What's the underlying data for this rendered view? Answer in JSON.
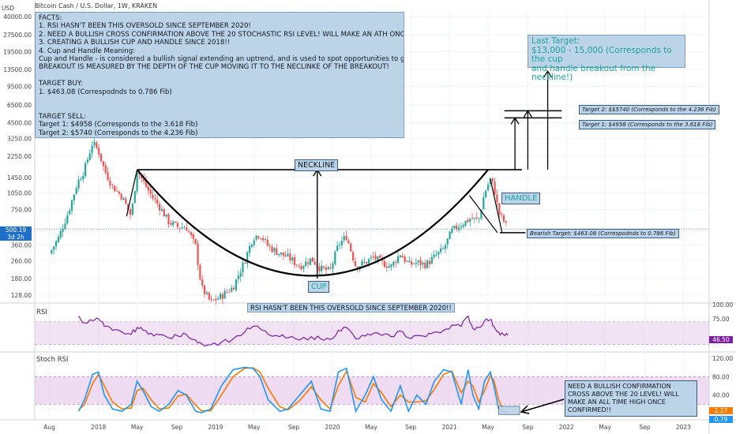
{
  "symbol": "Bitcoin Cash / U.S. Dollar, 1W, KRAKEN",
  "currency": "USD",
  "facts_lines": [
    "FACTS:",
    "1. RSI HASN'T BEEN THIS OVERSOLD SINCE SEPTEMBER 2020!",
    "2. NEED A BULLISH CROSS CONFIRMATION ABOVE THE 20 STOCHASTIC RSI LEVEL! WILL MAKE AN ATH ONCE CONFIRMED!",
    "3. CREATING A BULLISH CUP AND HANDLE SINCE 2018!!",
    "4. Cup and Handle Meaning:",
    "Cup and Handle - is considered a bullish signal extending an uptrend, and is used to spot opportunities to go long.",
    "BREAKOUT IS MEASURED BY THE DEPTH OF THE CUP MOVING IT TO THE NECLINKE OF THE BREAKOUT!",
    "",
    "TARGET BUY:",
    "1. $463.08 (Correspodnds to 0.786 Fib)",
    "",
    "",
    "TARGET SELL:",
    "Target 1: $4958 (Corresponds to the 3.618 Fib)",
    "Target 2: $5740 (Corresponds to the 4.236 Fib)",
    "Target 3: $13,000 - 15,000 (Corresponds to the cup and handle breakout from the neckline!)"
  ],
  "last_target_lines": [
    "Last Target:",
    "$13,000 - 15,000 (Corresponds to the cup",
    "and handle breakout from the neckline!)"
  ],
  "labels": {
    "target2": "Target 2: $$5740 (Corresponds to the 4.236 Fib)",
    "target1": "Target 1: $4958 (Corresponds to the 3.618 Fib)",
    "bearish": "Bearish Target: $463.08 (Correspodnds to 0.786 Fib)",
    "neckline": "NECKLINE",
    "cup": "CUP",
    "handle": "HANDLE",
    "rsi_note": "RSI HASN'T BEEN THIS OVERSOLD SINCE SEPTEMBER 2020!!",
    "stoch_note": "NEED A BULLISH CONFIRMATION CROSS ABOVE THE 20 LEVEL! WILL MAKE AN ALL TIME HIGH ONCE CONFIRMED!!"
  },
  "colors": {
    "up": "#26a69a",
    "down": "#ef5350",
    "rsi": "#7b1fa2",
    "stoch_k": "#2196f3",
    "stoch_d": "#f57c00",
    "band": "#e1bee7",
    "note_bg": "#bcd4e8"
  },
  "chart_data": [
    {
      "type": "candlestick",
      "title": "Bitcoin Cash / U.S. Dollar, 1W, KRAKEN",
      "scale": "log",
      "current_price": "500.19",
      "current_countdown": "3d 2h",
      "y_ticks": [
        "40000.00",
        "27500.00",
        "19500.00",
        "13500.00",
        "9500.00",
        "6500.00",
        "4500.00",
        "3250.00",
        "2250.00",
        "1450.00",
        "1050.00",
        "750.00",
        "500.00",
        "360.00",
        "260.00",
        "180.00",
        "128.00"
      ],
      "y_tick_values": [
        40000,
        27500,
        19500,
        13500,
        9500,
        6500,
        4500,
        3250,
        2250,
        1450,
        1050,
        750,
        500,
        360,
        260,
        180,
        128
      ],
      "x_ticks": [
        "Aug",
        "2018",
        "May",
        "Sep",
        "2019",
        "May",
        "Sep",
        "2020",
        "May",
        "Sep",
        "2021",
        "May",
        "Sep",
        "2022",
        "May",
        "Sep",
        "2023"
      ],
      "x_tick_times": [
        2017.58,
        2018.0,
        2018.33,
        2018.67,
        2019.0,
        2019.33,
        2019.67,
        2020.0,
        2020.33,
        2020.67,
        2021.0,
        2021.33,
        2021.67,
        2022.0,
        2022.33,
        2022.67,
        2023.0
      ],
      "price_path": [
        [
          2017.58,
          300
        ],
        [
          2017.66,
          420
        ],
        [
          2017.74,
          700
        ],
        [
          2017.82,
          1300
        ],
        [
          2017.88,
          1700
        ],
        [
          2017.95,
          3000
        ],
        [
          2018.0,
          2500
        ],
        [
          2018.05,
          1700
        ],
        [
          2018.12,
          1200
        ],
        [
          2018.2,
          980
        ],
        [
          2018.28,
          650
        ],
        [
          2018.33,
          1700
        ],
        [
          2018.38,
          1350
        ],
        [
          2018.45,
          1000
        ],
        [
          2018.52,
          800
        ],
        [
          2018.6,
          580
        ],
        [
          2018.68,
          520
        ],
        [
          2018.75,
          520
        ],
        [
          2018.83,
          350
        ],
        [
          2018.88,
          150
        ],
        [
          2018.96,
          110
        ],
        [
          2019.05,
          125
        ],
        [
          2019.15,
          150
        ],
        [
          2019.25,
          260
        ],
        [
          2019.32,
          420
        ],
        [
          2019.38,
          450
        ],
        [
          2019.45,
          350
        ],
        [
          2019.55,
          300
        ],
        [
          2019.62,
          280
        ],
        [
          2019.72,
          230
        ],
        [
          2019.82,
          270
        ],
        [
          2019.9,
          220
        ],
        [
          2019.98,
          210
        ],
        [
          2020.05,
          360
        ],
        [
          2020.12,
          430
        ],
        [
          2020.2,
          230
        ],
        [
          2020.28,
          250
        ],
        [
          2020.35,
          280
        ],
        [
          2020.42,
          250
        ],
        [
          2020.5,
          230
        ],
        [
          2020.58,
          300
        ],
        [
          2020.65,
          240
        ],
        [
          2020.72,
          250
        ],
        [
          2020.8,
          240
        ],
        [
          2020.87,
          280
        ],
        [
          2020.95,
          330
        ],
        [
          2021.02,
          480
        ],
        [
          2021.1,
          550
        ],
        [
          2021.18,
          620
        ],
        [
          2021.25,
          600
        ],
        [
          2021.3,
          1050
        ],
        [
          2021.35,
          1400
        ],
        [
          2021.38,
          1200
        ],
        [
          2021.42,
          700
        ],
        [
          2021.46,
          600
        ],
        [
          2021.5,
          500
        ]
      ],
      "annotations_price": {
        "neckline": 1700,
        "bearish_target": 463.08,
        "target1": 4958,
        "target2": 5740,
        "last_target_low": 13000,
        "last_target_high": 15000
      }
    },
    {
      "type": "line",
      "title": "RSI",
      "y_ticks": [
        "100.00",
        "75.00"
      ],
      "y_tick_values": [
        100,
        75
      ],
      "band": [
        30,
        70
      ],
      "current_value": "46.50",
      "series": [
        {
          "name": "RSI",
          "values": [
            [
              2017.83,
              80
            ],
            [
              2017.88,
              68
            ],
            [
              2017.95,
              72
            ],
            [
              2018.0,
              75
            ],
            [
              2018.05,
              62
            ],
            [
              2018.12,
              55
            ],
            [
              2018.2,
              52
            ],
            [
              2018.28,
              48
            ],
            [
              2018.33,
              60
            ],
            [
              2018.38,
              55
            ],
            [
              2018.45,
              50
            ],
            [
              2018.52,
              47
            ],
            [
              2018.6,
              42
            ],
            [
              2018.68,
              45
            ],
            [
              2018.75,
              48
            ],
            [
              2018.83,
              38
            ],
            [
              2018.88,
              32
            ],
            [
              2018.96,
              30
            ],
            [
              2019.05,
              34
            ],
            [
              2019.15,
              40
            ],
            [
              2019.25,
              52
            ],
            [
              2019.32,
              62
            ],
            [
              2019.38,
              58
            ],
            [
              2019.45,
              48
            ],
            [
              2019.55,
              44
            ],
            [
              2019.62,
              42
            ],
            [
              2019.72,
              38
            ],
            [
              2019.82,
              44
            ],
            [
              2019.9,
              40
            ],
            [
              2019.98,
              39
            ],
            [
              2020.05,
              55
            ],
            [
              2020.12,
              60
            ],
            [
              2020.2,
              40
            ],
            [
              2020.28,
              45
            ],
            [
              2020.35,
              50
            ],
            [
              2020.42,
              46
            ],
            [
              2020.5,
              44
            ],
            [
              2020.58,
              54
            ],
            [
              2020.65,
              42
            ],
            [
              2020.72,
              46
            ],
            [
              2020.8,
              44
            ],
            [
              2020.87,
              52
            ],
            [
              2020.95,
              55
            ],
            [
              2021.02,
              64
            ],
            [
              2021.1,
              62
            ],
            [
              2021.16,
              80
            ],
            [
              2021.2,
              58
            ],
            [
              2021.25,
              60
            ],
            [
              2021.3,
              72
            ],
            [
              2021.35,
              74
            ],
            [
              2021.38,
              62
            ],
            [
              2021.42,
              52
            ],
            [
              2021.46,
              48
            ],
            [
              2021.5,
              46.5
            ]
          ]
        }
      ]
    },
    {
      "type": "line",
      "title": "Stoch RSI",
      "y_ticks": [
        "120.00",
        "80.00",
        "40.00"
      ],
      "y_tick_values": [
        120,
        80,
        40
      ],
      "band": [
        20,
        80
      ],
      "current_values": [
        "2.27",
        "0.79"
      ],
      "series": [
        {
          "name": "K",
          "values": [
            [
              2017.83,
              5
            ],
            [
              2017.88,
              30
            ],
            [
              2017.95,
              85
            ],
            [
              2018.0,
              90
            ],
            [
              2018.05,
              40
            ],
            [
              2018.12,
              10
            ],
            [
              2018.2,
              5
            ],
            [
              2018.28,
              20
            ],
            [
              2018.33,
              70
            ],
            [
              2018.38,
              50
            ],
            [
              2018.45,
              15
            ],
            [
              2018.52,
              5
            ],
            [
              2018.6,
              20
            ],
            [
              2018.68,
              50
            ],
            [
              2018.75,
              40
            ],
            [
              2018.83,
              5
            ],
            [
              2018.88,
              2
            ],
            [
              2018.96,
              10
            ],
            [
              2019.05,
              60
            ],
            [
              2019.15,
              95
            ],
            [
              2019.25,
              100
            ],
            [
              2019.32,
              98
            ],
            [
              2019.38,
              80
            ],
            [
              2019.45,
              30
            ],
            [
              2019.55,
              5
            ],
            [
              2019.62,
              10
            ],
            [
              2019.72,
              40
            ],
            [
              2019.82,
              70
            ],
            [
              2019.9,
              10
            ],
            [
              2019.98,
              5
            ],
            [
              2020.05,
              90
            ],
            [
              2020.12,
              98
            ],
            [
              2020.2,
              5
            ],
            [
              2020.28,
              40
            ],
            [
              2020.35,
              80
            ],
            [
              2020.42,
              30
            ],
            [
              2020.5,
              5
            ],
            [
              2020.58,
              60
            ],
            [
              2020.65,
              5
            ],
            [
              2020.72,
              40
            ],
            [
              2020.8,
              20
            ],
            [
              2020.87,
              70
            ],
            [
              2020.95,
              95
            ],
            [
              2021.02,
              90
            ],
            [
              2021.1,
              20
            ],
            [
              2021.16,
              95
            ],
            [
              2021.2,
              40
            ],
            [
              2021.25,
              10
            ],
            [
              2021.3,
              70
            ],
            [
              2021.35,
              90
            ],
            [
              2021.38,
              60
            ],
            [
              2021.42,
              10
            ],
            [
              2021.46,
              3
            ],
            [
              2021.5,
              0.8
            ]
          ]
        },
        {
          "name": "D",
          "values": [
            [
              2017.83,
              8
            ],
            [
              2017.88,
              20
            ],
            [
              2017.95,
              65
            ],
            [
              2018.0,
              85
            ],
            [
              2018.05,
              60
            ],
            [
              2018.12,
              25
            ],
            [
              2018.2,
              10
            ],
            [
              2018.28,
              12
            ],
            [
              2018.33,
              50
            ],
            [
              2018.38,
              55
            ],
            [
              2018.45,
              30
            ],
            [
              2018.52,
              10
            ],
            [
              2018.6,
              12
            ],
            [
              2018.68,
              38
            ],
            [
              2018.75,
              42
            ],
            [
              2018.83,
              18
            ],
            [
              2018.88,
              6
            ],
            [
              2018.96,
              6
            ],
            [
              2019.05,
              40
            ],
            [
              2019.15,
              80
            ],
            [
              2019.25,
              98
            ],
            [
              2019.32,
              99
            ],
            [
              2019.38,
              90
            ],
            [
              2019.45,
              55
            ],
            [
              2019.55,
              15
            ],
            [
              2019.62,
              8
            ],
            [
              2019.72,
              28
            ],
            [
              2019.82,
              58
            ],
            [
              2019.9,
              30
            ],
            [
              2019.98,
              10
            ],
            [
              2020.05,
              60
            ],
            [
              2020.12,
              92
            ],
            [
              2020.2,
              35
            ],
            [
              2020.28,
              25
            ],
            [
              2020.35,
              65
            ],
            [
              2020.42,
              45
            ],
            [
              2020.5,
              15
            ],
            [
              2020.58,
              40
            ],
            [
              2020.65,
              25
            ],
            [
              2020.72,
              25
            ],
            [
              2020.8,
              28
            ],
            [
              2020.87,
              52
            ],
            [
              2020.95,
              85
            ],
            [
              2021.02,
              92
            ],
            [
              2021.1,
              45
            ],
            [
              2021.16,
              70
            ],
            [
              2021.2,
              60
            ],
            [
              2021.25,
              25
            ],
            [
              2021.3,
              50
            ],
            [
              2021.35,
              82
            ],
            [
              2021.38,
              72
            ],
            [
              2021.42,
              30
            ],
            [
              2021.46,
              8
            ],
            [
              2021.5,
              2.3
            ]
          ]
        }
      ]
    }
  ]
}
